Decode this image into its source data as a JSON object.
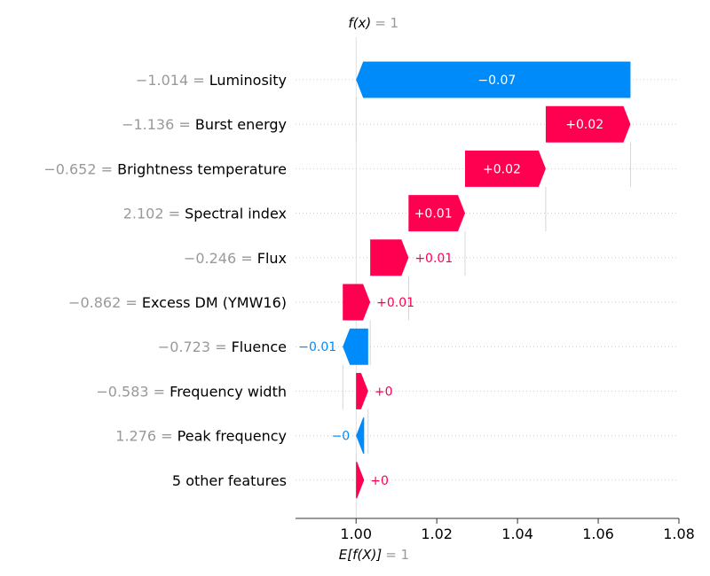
{
  "chart_data": {
    "type": "bar",
    "subtype": "waterfall",
    "top_label": {
      "fx": "f(x)",
      "value": "= 1"
    },
    "bottom_label": {
      "efx": "E[f(X)]",
      "value": "= 1"
    },
    "base_value": 1.0,
    "final_value": 1.0,
    "xlim": [
      0.985,
      1.08
    ],
    "xticks": [
      1.0,
      1.02,
      1.04,
      1.06,
      1.08
    ],
    "xtick_labels": [
      "1.00",
      "1.02",
      "1.04",
      "1.06",
      "1.08"
    ],
    "colors": {
      "positive": "#ff0051",
      "negative": "#008bfb",
      "value_gray": "#999999"
    },
    "features": [
      {
        "value_text": "−1.014 =",
        "name": "Luminosity",
        "start": 1.068,
        "end": 1.0,
        "label": "−0.07"
      },
      {
        "value_text": "−1.136 =",
        "name": "Burst energy",
        "start": 1.047,
        "end": 1.068,
        "label": "+0.02"
      },
      {
        "value_text": "−0.652 =",
        "name": "Brightness temperature",
        "start": 1.027,
        "end": 1.047,
        "label": "+0.02"
      },
      {
        "value_text": "2.102 =",
        "name": "Spectral index",
        "start": 1.013,
        "end": 1.027,
        "label": "+0.01"
      },
      {
        "value_text": "−0.246 =",
        "name": "Flux",
        "start": 1.0035,
        "end": 1.013,
        "label": "+0.01"
      },
      {
        "value_text": "−0.862 =",
        "name": "Excess DM (YMW16)",
        "start": 0.9967,
        "end": 1.0035,
        "label": "+0.01"
      },
      {
        "value_text": "−0.723 =",
        "name": "Fluence",
        "start": 1.003,
        "end": 0.9967,
        "label": "−0.01"
      },
      {
        "value_text": "−0.583 =",
        "name": "Frequency width",
        "start": 1.0,
        "end": 1.003,
        "label": "+0"
      },
      {
        "value_text": "1.276 =",
        "name": "Peak frequency",
        "start": 1.002,
        "end": 1.0,
        "label": "−0"
      },
      {
        "value_text": "",
        "name": "5 other features",
        "start": 1.0,
        "end": 1.002,
        "label": "+0"
      }
    ]
  }
}
